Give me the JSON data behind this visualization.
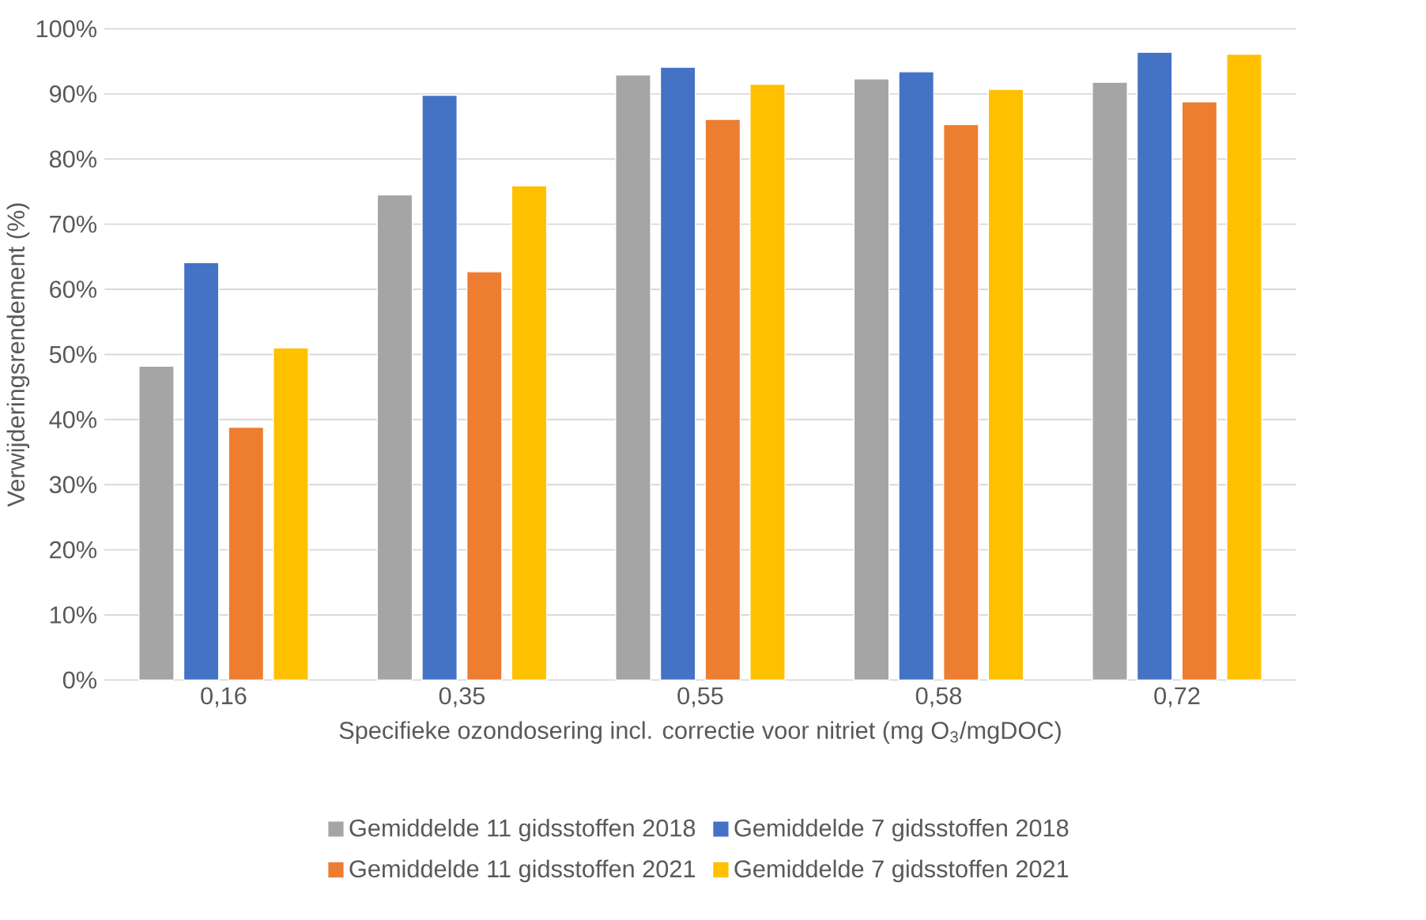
{
  "chart_data": {
    "type": "bar",
    "xlabel": "Specifieke ozondosering incl. correctie voor nitriet  (mg O$_{3}$/mgDOC)",
    "ylabel": "Verwijderingsrendement (%)",
    "categories": [
      "0,16",
      "0,35",
      "0,55",
      "0,58",
      "0,72"
    ],
    "series": [
      {
        "name": "Gemiddelde 11 gidsstoffen 2018",
        "color": "#a5a5a5",
        "values": [
          48.2,
          74.5,
          92.9,
          92.3,
          91.8
        ]
      },
      {
        "name": "Gemiddelde 7 gidsstoffen 2018",
        "color": "#4472c4",
        "values": [
          64.1,
          89.8,
          94.1,
          93.4,
          96.4
        ]
      },
      {
        "name": "Gemiddelde 11 gidsstoffen 2021",
        "color": "#ed7d31",
        "values": [
          38.8,
          62.7,
          86.1,
          85.3,
          88.8
        ]
      },
      {
        "name": "Gemiddelde 7 gidsstoffen 2021",
        "color": "#ffc000",
        "values": [
          51.0,
          75.9,
          91.5,
          90.7,
          96.1
        ]
      }
    ],
    "ylim": [
      0,
      100
    ],
    "yticks": [
      {
        "value": 0,
        "label": "0%"
      },
      {
        "value": 10,
        "label": "10%"
      },
      {
        "value": 20,
        "label": "20%"
      },
      {
        "value": 30,
        "label": "30%"
      },
      {
        "value": 40,
        "label": "40%"
      },
      {
        "value": 50,
        "label": "50%"
      },
      {
        "value": 60,
        "label": "60%"
      },
      {
        "value": 70,
        "label": "70%"
      },
      {
        "value": 80,
        "label": "80%"
      },
      {
        "value": 90,
        "label": "90%"
      },
      {
        "value": 100,
        "label": "100%"
      }
    ],
    "grid": "y",
    "legend": "bottom"
  }
}
